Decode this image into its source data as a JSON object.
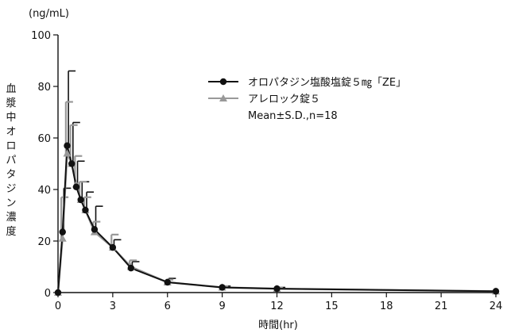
{
  "chart_data": {
    "type": "line",
    "unit_label": "(ng/mL)",
    "xlabel": "時間(hr)",
    "ylabel": "血漿中オロパタジン濃度",
    "xlim": [
      0,
      24
    ],
    "ylim": [
      0,
      100
    ],
    "x_ticks": [
      0,
      3,
      6,
      9,
      12,
      15,
      18,
      21,
      24
    ],
    "y_ticks": [
      0,
      20,
      40,
      60,
      80,
      100
    ],
    "legend": {
      "placement": "top-right",
      "note": "Mean±S.D.,n=18"
    },
    "series": [
      {
        "name": "オロパタジン塩酸塩錠５㎎「ZE」",
        "color": "#111111",
        "marker": "circle",
        "x": [
          0,
          0.25,
          0.5,
          0.75,
          1,
          1.25,
          1.5,
          2,
          3,
          4,
          6,
          9,
          12,
          24
        ],
        "y": [
          0,
          23.5,
          57,
          50,
          41,
          36,
          32,
          24.5,
          17.5,
          9.5,
          4,
          2,
          1.5,
          0.5
        ],
        "sd": [
          0,
          17,
          29,
          16,
          10,
          7,
          7,
          9,
          3,
          2.5,
          1.5,
          0.5,
          0.5,
          0
        ]
      },
      {
        "name": "アレロック錠５",
        "color": "#999999",
        "marker": "triangle",
        "x": [
          0,
          0.25,
          0.5,
          0.75,
          1,
          1.25,
          1.5,
          2,
          3,
          4,
          6,
          9,
          12,
          24
        ],
        "y": [
          0,
          21,
          54,
          50,
          42,
          36,
          32,
          23.5,
          17.5,
          10,
          4,
          2,
          1.5,
          0.5
        ],
        "sd": [
          0,
          16,
          20,
          15,
          11,
          7,
          5,
          4,
          5,
          2.5,
          1,
          0.5,
          0.5,
          0
        ]
      }
    ]
  }
}
